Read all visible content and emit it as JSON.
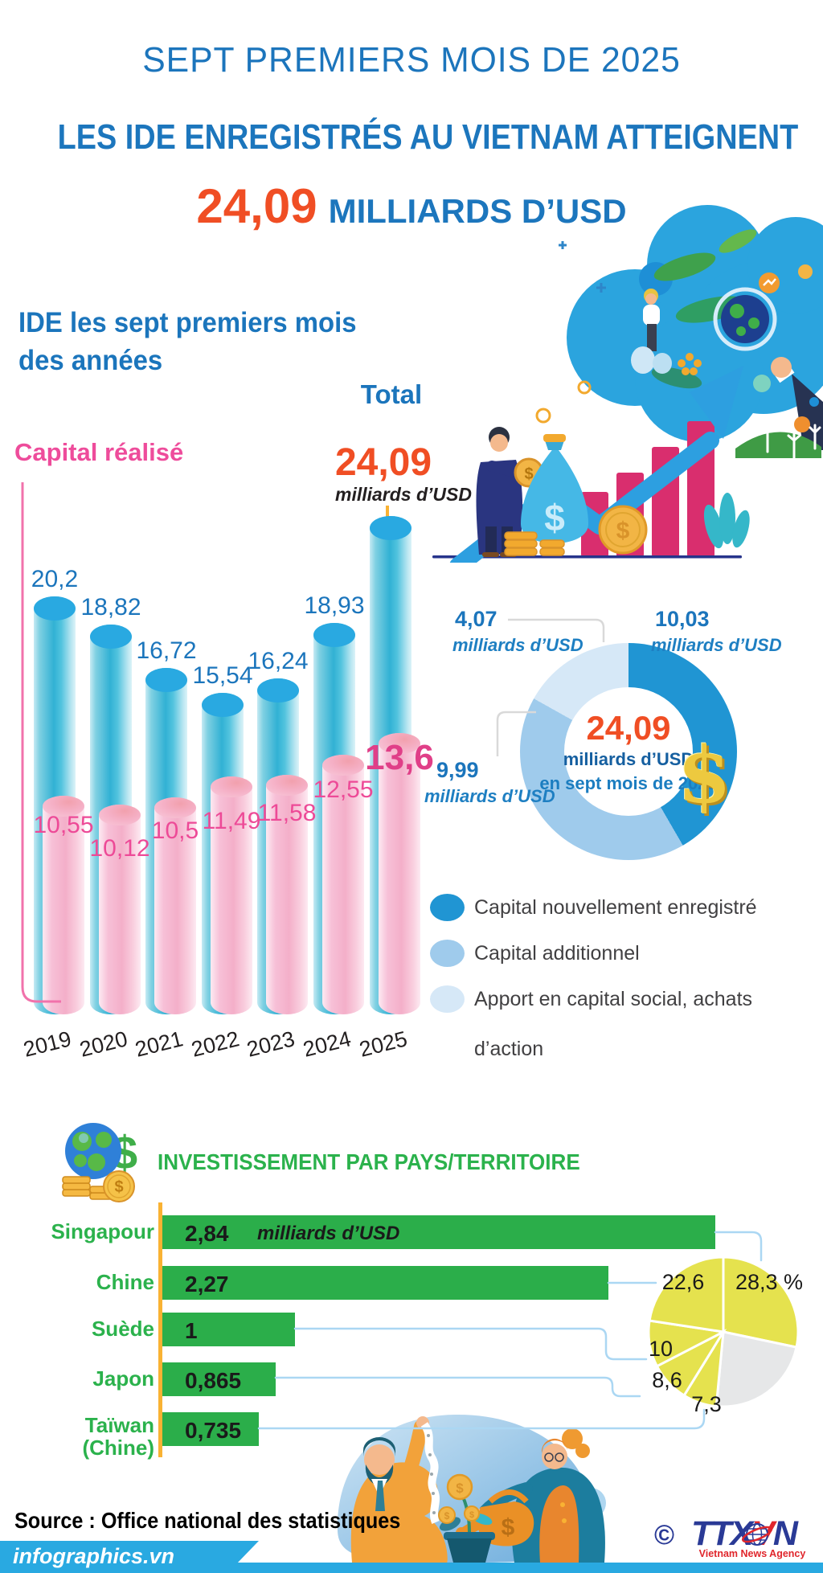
{
  "header": {
    "line1": "SEPT PREMIERS MOIS DE 2025",
    "line2": "LES IDE ENREGISTRÉS AU VIETNAM ATTEIGNENT",
    "amount": "24,09",
    "amount_unit": "MILLIARDS D’USD"
  },
  "section1": {
    "title_l1": "IDE les sept premiers mois",
    "title_l2": "des années",
    "series_total_label": "Total",
    "series_realised_label": "Capital réalisé",
    "total_amount": "24,09",
    "total_unit": "milliards d’USD"
  },
  "decor": {
    "dollar_badge": "$"
  },
  "footer": {
    "source": "Source : Office national des statistiques",
    "brand": "infographics.vn",
    "copyright": "©",
    "agency": "TTXVN",
    "agency_t1": "TTX",
    "agency_t2": "V",
    "agency_t3": "N",
    "agency_tagline": "Vietnam News Agency"
  },
  "chart_data": [
    {
      "type": "bar",
      "title": "IDE les sept premiers mois des années",
      "unit": "milliards d’USD",
      "categories": [
        "2019",
        "2020",
        "2021",
        "2022",
        "2023",
        "2024",
        "2025"
      ],
      "series": [
        {
          "name": "Total",
          "color": "#29a9e1",
          "values": [
            20.2,
            18.82,
            16.72,
            15.54,
            16.24,
            18.93,
            24.09
          ],
          "labels": [
            "20,2",
            "18,82",
            "16,72",
            "15,54",
            "16,24",
            "18,93",
            "24,09"
          ]
        },
        {
          "name": "Capital réalisé",
          "color": "#f4afc9",
          "values": [
            10.55,
            10.12,
            10.5,
            11.49,
            11.58,
            12.55,
            13.6
          ],
          "labels": [
            "10,55",
            "10,12",
            "10,5",
            "11,49",
            "11,58",
            "12,55",
            "13,6"
          ]
        }
      ],
      "ylim": [
        0,
        25
      ]
    },
    {
      "type": "pie",
      "shape": "donut",
      "unit": "milliards d’USD",
      "center": {
        "amount": "24,09",
        "line1": "milliards d’USD",
        "line2": "en sept mois de 2025"
      },
      "slices": [
        {
          "label": "Capital nouvellement enregistré",
          "value": 10.03,
          "display": "10,03",
          "color": "#2095d3"
        },
        {
          "label": "Capital additionnel",
          "value": 9.99,
          "display": "9,99",
          "color": "#9fcbec"
        },
        {
          "label": "Apport en capital social, achats d’action",
          "label_l1": "Apport en capital social, achats",
          "label_l2": "d’action",
          "value": 4.07,
          "display": "4,07",
          "color": "#d6e8f7"
        }
      ]
    },
    {
      "type": "bar",
      "title": "INVESTISSEMENT PAR PAYS/TERRITOIRE",
      "unit": "milliards d’USD",
      "bar_color": "#2bae4a",
      "pie_color": "#e5e24e",
      "pie_other_color": "#e6e7e8",
      "other_pct": 23.2,
      "rows": [
        {
          "country": "Singapour",
          "value": 2.84,
          "display": "2,84",
          "pct": 28.3,
          "pct_display": "28,3 %"
        },
        {
          "country": "Chine",
          "value": 2.27,
          "display": "2,27",
          "pct": 22.6,
          "pct_display": "22,6"
        },
        {
          "country": "Suède",
          "value": 1,
          "display": "1",
          "pct": 10,
          "pct_display": "10"
        },
        {
          "country": "Japon",
          "value": 0.865,
          "display": "0,865",
          "pct": 8.6,
          "pct_display": "8,6"
        },
        {
          "country": "Taïwan\n(Chine)",
          "value": 0.735,
          "display": "0,735",
          "pct": 7.3,
          "pct_display": "7,3"
        }
      ]
    }
  ]
}
